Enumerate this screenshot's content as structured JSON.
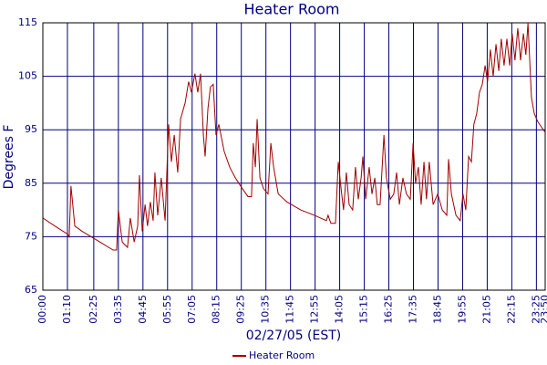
{
  "chart_data": {
    "type": "line",
    "title": "Heater Room",
    "x_label": "02/27/05 (EST)",
    "y_label": "Degrees F",
    "x": [
      0,
      34,
      70,
      75,
      80,
      91,
      112,
      163,
      200,
      210,
      215,
      226,
      241,
      249,
      260,
      270,
      275,
      283,
      291,
      298,
      306,
      314,
      319,
      327,
      337,
      348,
      358,
      366,
      374,
      384,
      392,
      405,
      415,
      423,
      433,
      441,
      449,
      457,
      462,
      470,
      477,
      485,
      493,
      501,
      516,
      532,
      548,
      568,
      584,
      594,
      599,
      605,
      610,
      618,
      628,
      641,
      649,
      657,
      670,
      695,
      734,
      773,
      807,
      812,
      820,
      833,
      841,
      849,
      856,
      864,
      872,
      882,
      890,
      898,
      906,
      911,
      919,
      929,
      937,
      945,
      952,
      960,
      971,
      978,
      989,
      999,
      1007,
      1015,
      1025,
      1035,
      1046,
      1054,
      1061,
      1069,
      1077,
      1085,
      1092,
      1100,
      1111,
      1124,
      1137,
      1150,
      1155,
      1163,
      1176,
      1188,
      1196,
      1204,
      1212,
      1220,
      1227,
      1235,
      1243,
      1251,
      1259,
      1266,
      1274,
      1282,
      1290,
      1298,
      1305,
      1313,
      1321,
      1329,
      1336,
      1344,
      1352,
      1360,
      1368,
      1375,
      1381,
      1386,
      1391,
      1399,
      1409,
      1430
    ],
    "series": [
      {
        "name": "Heater Room",
        "color": "#a00000",
        "values": [
          78.5,
          77,
          75.5,
          75,
          84.5,
          77,
          76,
          74,
          72.5,
          72.5,
          80,
          74,
          73,
          78.5,
          74,
          77,
          86.5,
          76,
          81,
          77,
          81.5,
          78,
          87,
          79,
          86,
          78,
          96,
          89,
          94,
          87,
          97,
          100,
          104,
          102,
          105.5,
          102,
          105.5,
          94,
          90,
          99,
          103,
          103.5,
          94,
          96,
          91,
          88,
          86,
          84,
          82.5,
          82.5,
          92.5,
          88,
          97,
          86,
          84,
          83,
          92.5,
          88,
          83,
          81.5,
          80,
          79,
          78,
          79,
          77.5,
          77.5,
          89,
          84,
          80,
          87,
          81,
          80,
          88,
          82,
          86,
          90,
          82,
          88,
          83,
          86,
          81,
          81,
          94,
          86,
          82,
          83,
          87,
          81,
          86,
          83,
          82,
          92.5,
          85,
          88,
          81,
          89,
          82,
          89,
          81,
          83,
          80,
          79,
          89.5,
          83,
          79,
          78,
          83,
          80,
          90,
          89,
          96,
          98,
          102,
          103.5,
          107,
          104,
          110,
          105,
          111,
          106,
          112,
          107,
          112,
          107,
          113,
          108,
          114,
          108,
          113,
          109,
          115,
          108,
          101,
          98,
          96.5,
          94.5
        ]
      }
    ],
    "xlim": [
      0,
      1430
    ],
    "xticks": [
      {
        "value": 0,
        "label": "00:00"
      },
      {
        "value": 70,
        "label": "01:10"
      },
      {
        "value": 145,
        "label": "02:25"
      },
      {
        "value": 215,
        "label": "03:35"
      },
      {
        "value": 285,
        "label": "04:45"
      },
      {
        "value": 355,
        "label": "05:55"
      },
      {
        "value": 425,
        "label": "07:05"
      },
      {
        "value": 495,
        "label": "08:15"
      },
      {
        "value": 565,
        "label": "09:25"
      },
      {
        "value": 635,
        "label": "10:35"
      },
      {
        "value": 705,
        "label": "11:45"
      },
      {
        "value": 775,
        "label": "12:55"
      },
      {
        "value": 845,
        "label": "14:05"
      },
      {
        "value": 915,
        "label": "15:15"
      },
      {
        "value": 985,
        "label": "16:25"
      },
      {
        "value": 1055,
        "label": "17:35"
      },
      {
        "value": 1125,
        "label": "18:45"
      },
      {
        "value": 1195,
        "label": "19:55"
      },
      {
        "value": 1265,
        "label": "21:05"
      },
      {
        "value": 1335,
        "label": "22:15"
      },
      {
        "value": 1405,
        "label": "23:25"
      },
      {
        "value": 1430,
        "label": "23:50"
      }
    ],
    "ylim": [
      65,
      115
    ],
    "yticks": [
      65,
      75,
      85,
      95,
      105,
      115
    ],
    "grid": true,
    "grid_color": "#000080",
    "legend": "bottom"
  }
}
